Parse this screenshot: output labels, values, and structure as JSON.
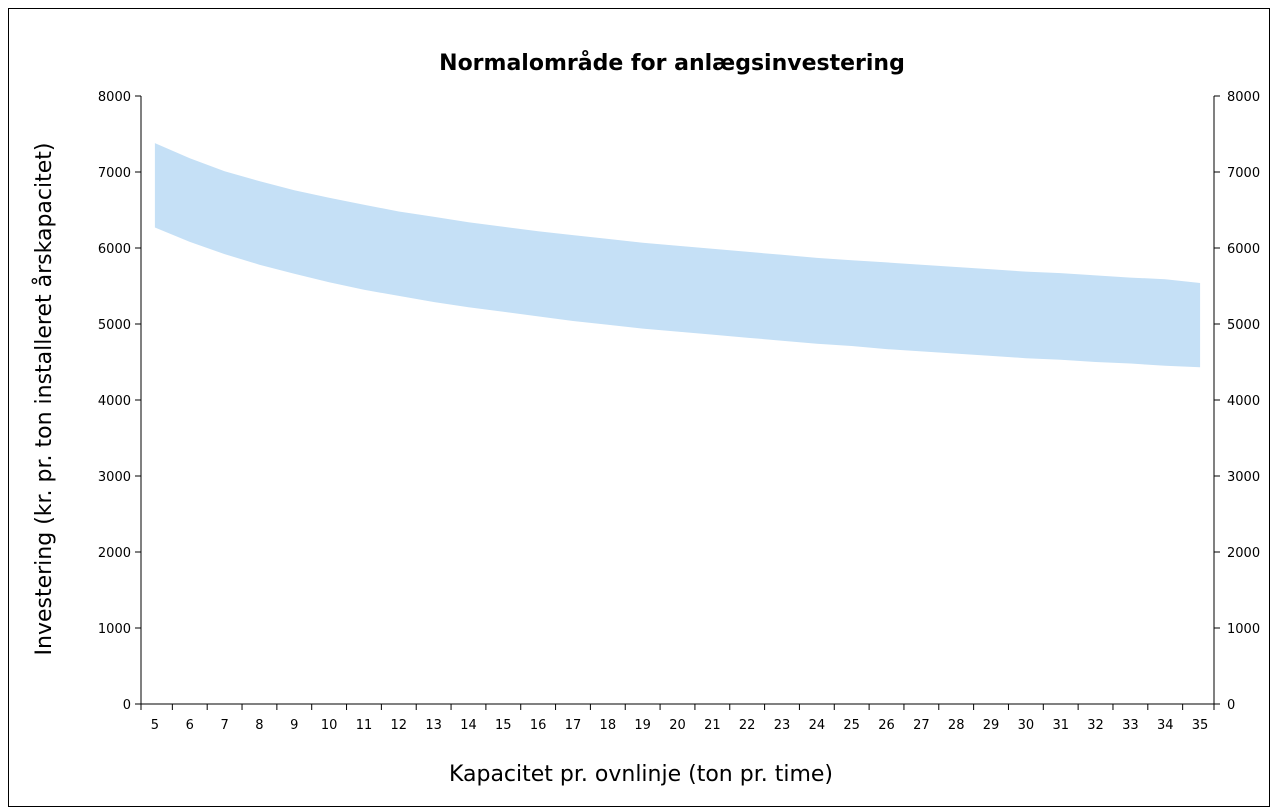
{
  "chart_data": {
    "type": "area",
    "title": "Normalområde for anlægsinvestering",
    "xlabel": "Kapacitet pr. ovnlinje (ton pr. time)",
    "ylabel": "Investering (kr. pr. ton installeret årskapacitet)",
    "x": [
      5,
      6,
      7,
      8,
      9,
      10,
      11,
      12,
      13,
      14,
      15,
      16,
      17,
      18,
      19,
      20,
      21,
      22,
      23,
      24,
      25,
      26,
      27,
      28,
      29,
      30,
      31,
      32,
      33,
      34,
      35
    ],
    "series": [
      {
        "role": "lower",
        "values": [
          6270,
          6080,
          5920,
          5780,
          5660,
          5550,
          5450,
          5370,
          5290,
          5220,
          5160,
          5100,
          5040,
          4990,
          4940,
          4900,
          4860,
          4820,
          4780,
          4740,
          4710,
          4670,
          4640,
          4610,
          4580,
          4550,
          4530,
          4500,
          4480,
          4450,
          4430
        ]
      },
      {
        "role": "upper",
        "values": [
          7380,
          7180,
          7010,
          6880,
          6760,
          6660,
          6570,
          6480,
          6410,
          6340,
          6280,
          6220,
          6170,
          6120,
          6070,
          6030,
          5990,
          5950,
          5910,
          5870,
          5840,
          5810,
          5780,
          5750,
          5720,
          5690,
          5670,
          5640,
          5610,
          5590,
          5540
        ]
      }
    ],
    "band_color": "#c5e0f6",
    "ylim": [
      0,
      8000
    ],
    "y_ticks": [
      0,
      1000,
      2000,
      3000,
      4000,
      5000,
      6000,
      7000,
      8000
    ],
    "xlim": [
      4.6,
      35.4
    ],
    "x_ticks": [
      5,
      6,
      7,
      8,
      9,
      10,
      11,
      12,
      13,
      14,
      15,
      16,
      17,
      18,
      19,
      20,
      21,
      22,
      23,
      24,
      25,
      26,
      27,
      28,
      29,
      30,
      31,
      32,
      33,
      34,
      35
    ],
    "secondary_y_axis": true,
    "grid": false,
    "legend": "none"
  }
}
